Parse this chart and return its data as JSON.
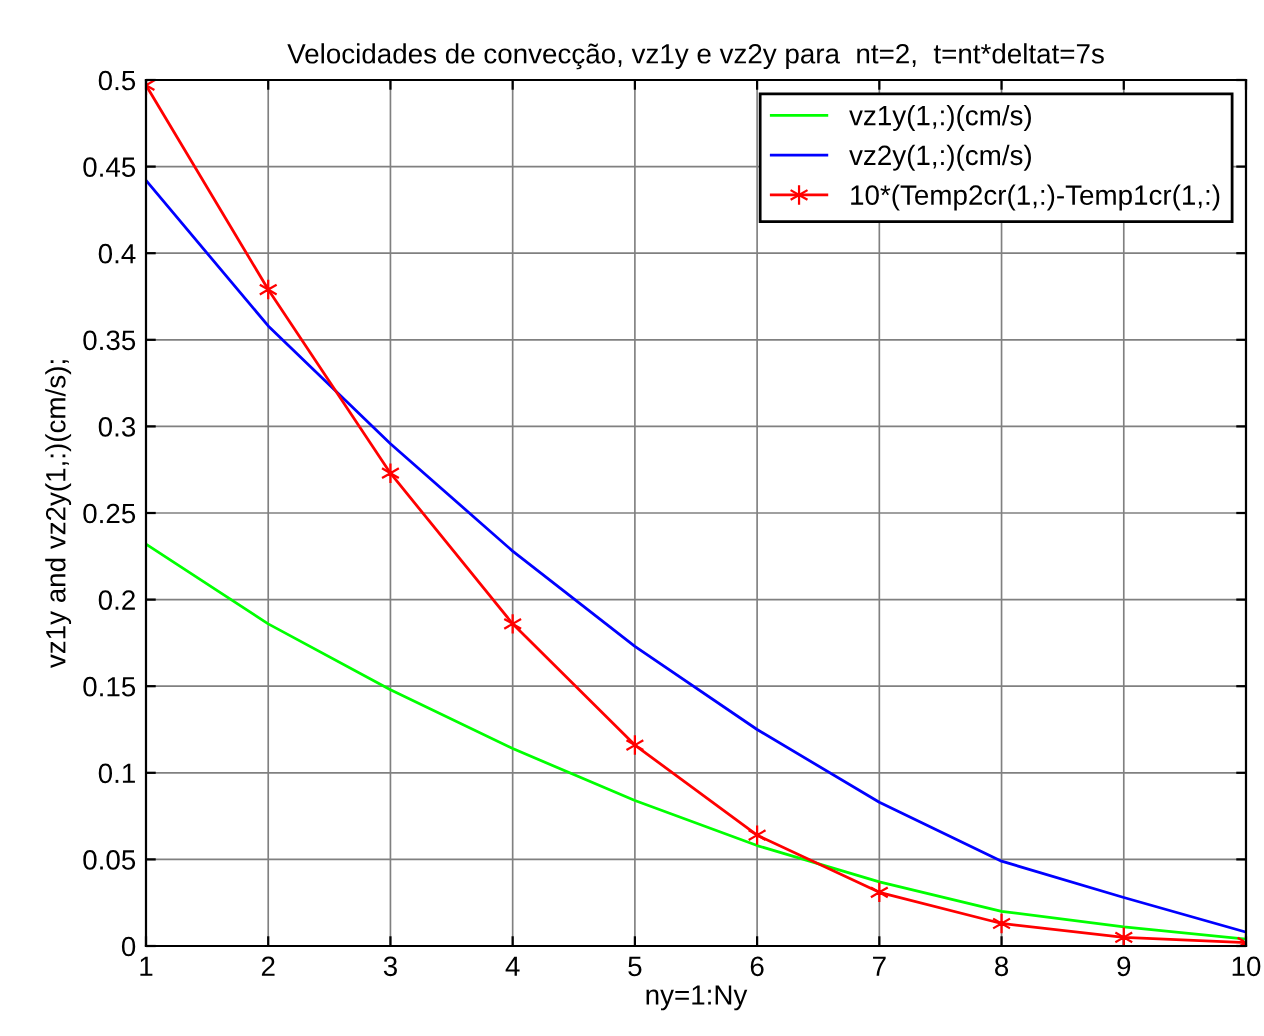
{
  "chart_data": {
    "type": "line",
    "title": "Velocidades de convecção, vz1y e vz2y para  nt=2,  t=nt*deltat=7s",
    "xlabel": "ny=1:Ny",
    "ylabel": "vz1y and vz2y(1,:)(cm/s);",
    "x": [
      1,
      2,
      3,
      4,
      5,
      6,
      7,
      8,
      9,
      10
    ],
    "series": [
      {
        "name": "vz1y(1,:)(cm/s)",
        "color": "#00ff00",
        "marker": "none",
        "values": [
          0.232,
          0.186,
          0.148,
          0.114,
          0.084,
          0.058,
          0.037,
          0.02,
          0.011,
          0.004
        ]
      },
      {
        "name": "vz2y(1,:)(cm/s)",
        "color": "#0000ff",
        "marker": "none",
        "values": [
          0.442,
          0.358,
          0.29,
          0.228,
          0.173,
          0.125,
          0.083,
          0.049,
          0.028,
          0.008
        ]
      },
      {
        "name": "10*(Temp2cr(1,:)-Temp1cr(1,:)",
        "color": "#ff0000",
        "marker": "cross",
        "values": [
          0.497,
          0.379,
          0.273,
          0.186,
          0.116,
          0.064,
          0.031,
          0.013,
          0.005,
          0.002
        ]
      }
    ],
    "xlim": [
      1,
      10
    ],
    "ylim": [
      0,
      0.5
    ],
    "xticks": [
      1,
      2,
      3,
      4,
      5,
      6,
      7,
      8,
      9,
      10
    ],
    "yticks": [
      0,
      0.05,
      0.1,
      0.15,
      0.2,
      0.25,
      0.3,
      0.35,
      0.4,
      0.45,
      0.5
    ],
    "grid": true,
    "legend": "top right"
  }
}
